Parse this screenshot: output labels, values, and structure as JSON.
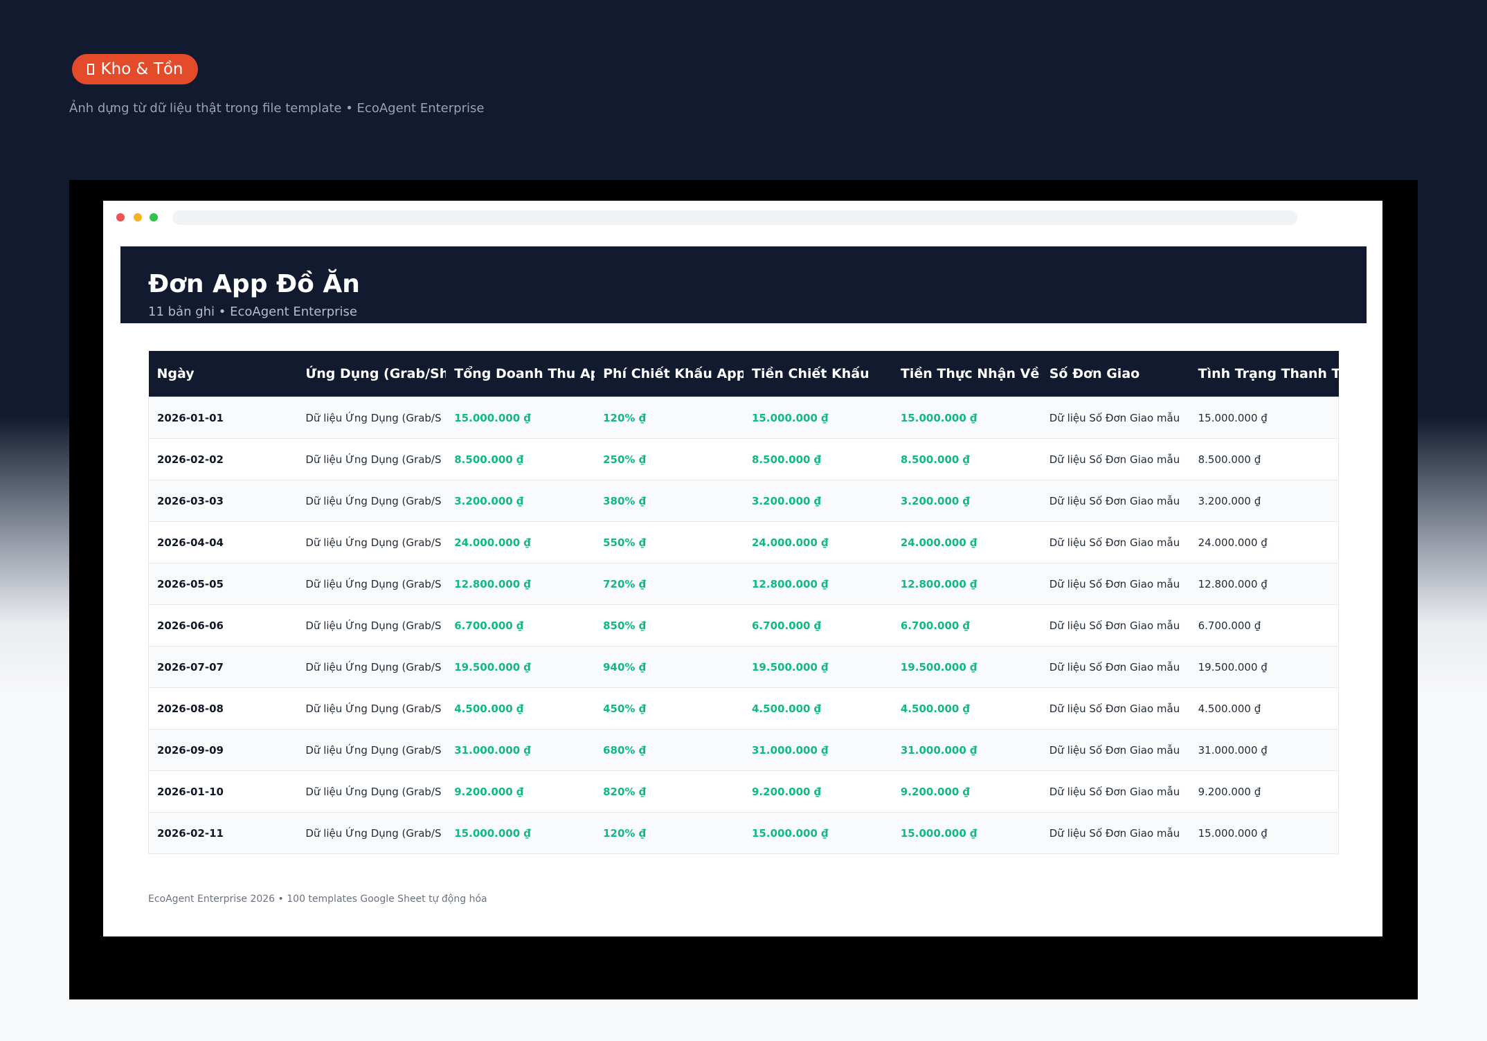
{
  "badge": "Kho & Tồn",
  "subtitle": "Ảnh dựng từ dữ liệu thật trong file template • EcoAgent Enterprise",
  "sheet": {
    "title": "Đơn App Đồ Ăn",
    "subtitle": "11 bản ghi • EcoAgent Enterprise"
  },
  "table": {
    "headers": [
      "Ngày",
      "Ứng Dụng (Grab/Sho",
      "Tổng Doanh Thu App",
      "Phí Chiết Khấu App",
      "Tiền Chiết Khấu",
      "Tiền Thực Nhận Về",
      "Số Đơn Giao",
      "Tình Trạng Thanh T"
    ],
    "rows": [
      [
        "2026-01-01",
        "Dữ liệu Ứng Dụng (Grab/S",
        "15.000.000 ₫",
        "120% ₫",
        "15.000.000 ₫",
        "15.000.000 ₫",
        "Dữ liệu Số Đơn Giao mẫu",
        "15.000.000 ₫"
      ],
      [
        "2026-02-02",
        "Dữ liệu Ứng Dụng (Grab/S",
        "8.500.000 ₫",
        "250% ₫",
        "8.500.000 ₫",
        "8.500.000 ₫",
        "Dữ liệu Số Đơn Giao mẫu",
        "8.500.000 ₫"
      ],
      [
        "2026-03-03",
        "Dữ liệu Ứng Dụng (Grab/S",
        "3.200.000 ₫",
        "380% ₫",
        "3.200.000 ₫",
        "3.200.000 ₫",
        "Dữ liệu Số Đơn Giao mẫu",
        "3.200.000 ₫"
      ],
      [
        "2026-04-04",
        "Dữ liệu Ứng Dụng (Grab/S",
        "24.000.000 ₫",
        "550% ₫",
        "24.000.000 ₫",
        "24.000.000 ₫",
        "Dữ liệu Số Đơn Giao mẫu",
        "24.000.000 ₫"
      ],
      [
        "2026-05-05",
        "Dữ liệu Ứng Dụng (Grab/S",
        "12.800.000 ₫",
        "720% ₫",
        "12.800.000 ₫",
        "12.800.000 ₫",
        "Dữ liệu Số Đơn Giao mẫu",
        "12.800.000 ₫"
      ],
      [
        "2026-06-06",
        "Dữ liệu Ứng Dụng (Grab/S",
        "6.700.000 ₫",
        "850% ₫",
        "6.700.000 ₫",
        "6.700.000 ₫",
        "Dữ liệu Số Đơn Giao mẫu",
        "6.700.000 ₫"
      ],
      [
        "2026-07-07",
        "Dữ liệu Ứng Dụng (Grab/S",
        "19.500.000 ₫",
        "940% ₫",
        "19.500.000 ₫",
        "19.500.000 ₫",
        "Dữ liệu Số Đơn Giao mẫu",
        "19.500.000 ₫"
      ],
      [
        "2026-08-08",
        "Dữ liệu Ứng Dụng (Grab/S",
        "4.500.000 ₫",
        "450% ₫",
        "4.500.000 ₫",
        "4.500.000 ₫",
        "Dữ liệu Số Đơn Giao mẫu",
        "4.500.000 ₫"
      ],
      [
        "2026-09-09",
        "Dữ liệu Ứng Dụng (Grab/S",
        "31.000.000 ₫",
        "680% ₫",
        "31.000.000 ₫",
        "31.000.000 ₫",
        "Dữ liệu Số Đơn Giao mẫu",
        "31.000.000 ₫"
      ],
      [
        "2026-01-10",
        "Dữ liệu Ứng Dụng (Grab/S",
        "9.200.000 ₫",
        "820% ₫",
        "9.200.000 ₫",
        "9.200.000 ₫",
        "Dữ liệu Số Đơn Giao mẫu",
        "9.200.000 ₫"
      ],
      [
        "2026-02-11",
        "Dữ liệu Ứng Dụng (Grab/S",
        "15.000.000 ₫",
        "120% ₫",
        "15.000.000 ₫",
        "15.000.000 ₫",
        "Dữ liệu Số Đơn Giao mẫu",
        "15.000.000 ₫"
      ]
    ]
  },
  "footer": "EcoAgent Enterprise 2026 • 100 templates Google Sheet tự động hóa"
}
